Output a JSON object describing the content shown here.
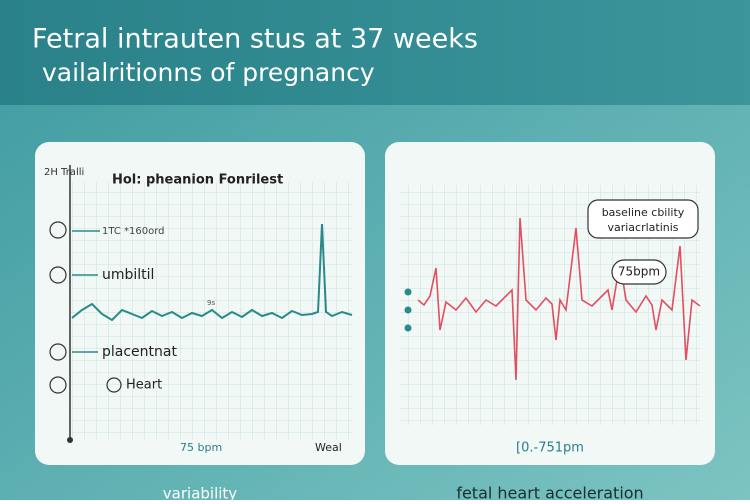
{
  "header": {
    "title": "Fetral intrauten stus at 37 weeks",
    "subtitle": "vailalritionns of pregnancy"
  },
  "left_panel": {
    "corner_label": "2H Tralli",
    "heading": "Hol: pheanion Fonrilest",
    "labels": [
      "1TC *160ord",
      "umbiltil",
      "placentnat",
      "Heart"
    ],
    "small_note": "9s",
    "rate": "75 bpm",
    "footer_right": "Weal",
    "caption": "variability"
  },
  "right_panel": {
    "callout": [
      "baseline cbility",
      "variacrlatinis"
    ],
    "rate_bubble": "75bpm",
    "range": "[0.-751pm",
    "caption": "fetal heart acceleration"
  }
}
